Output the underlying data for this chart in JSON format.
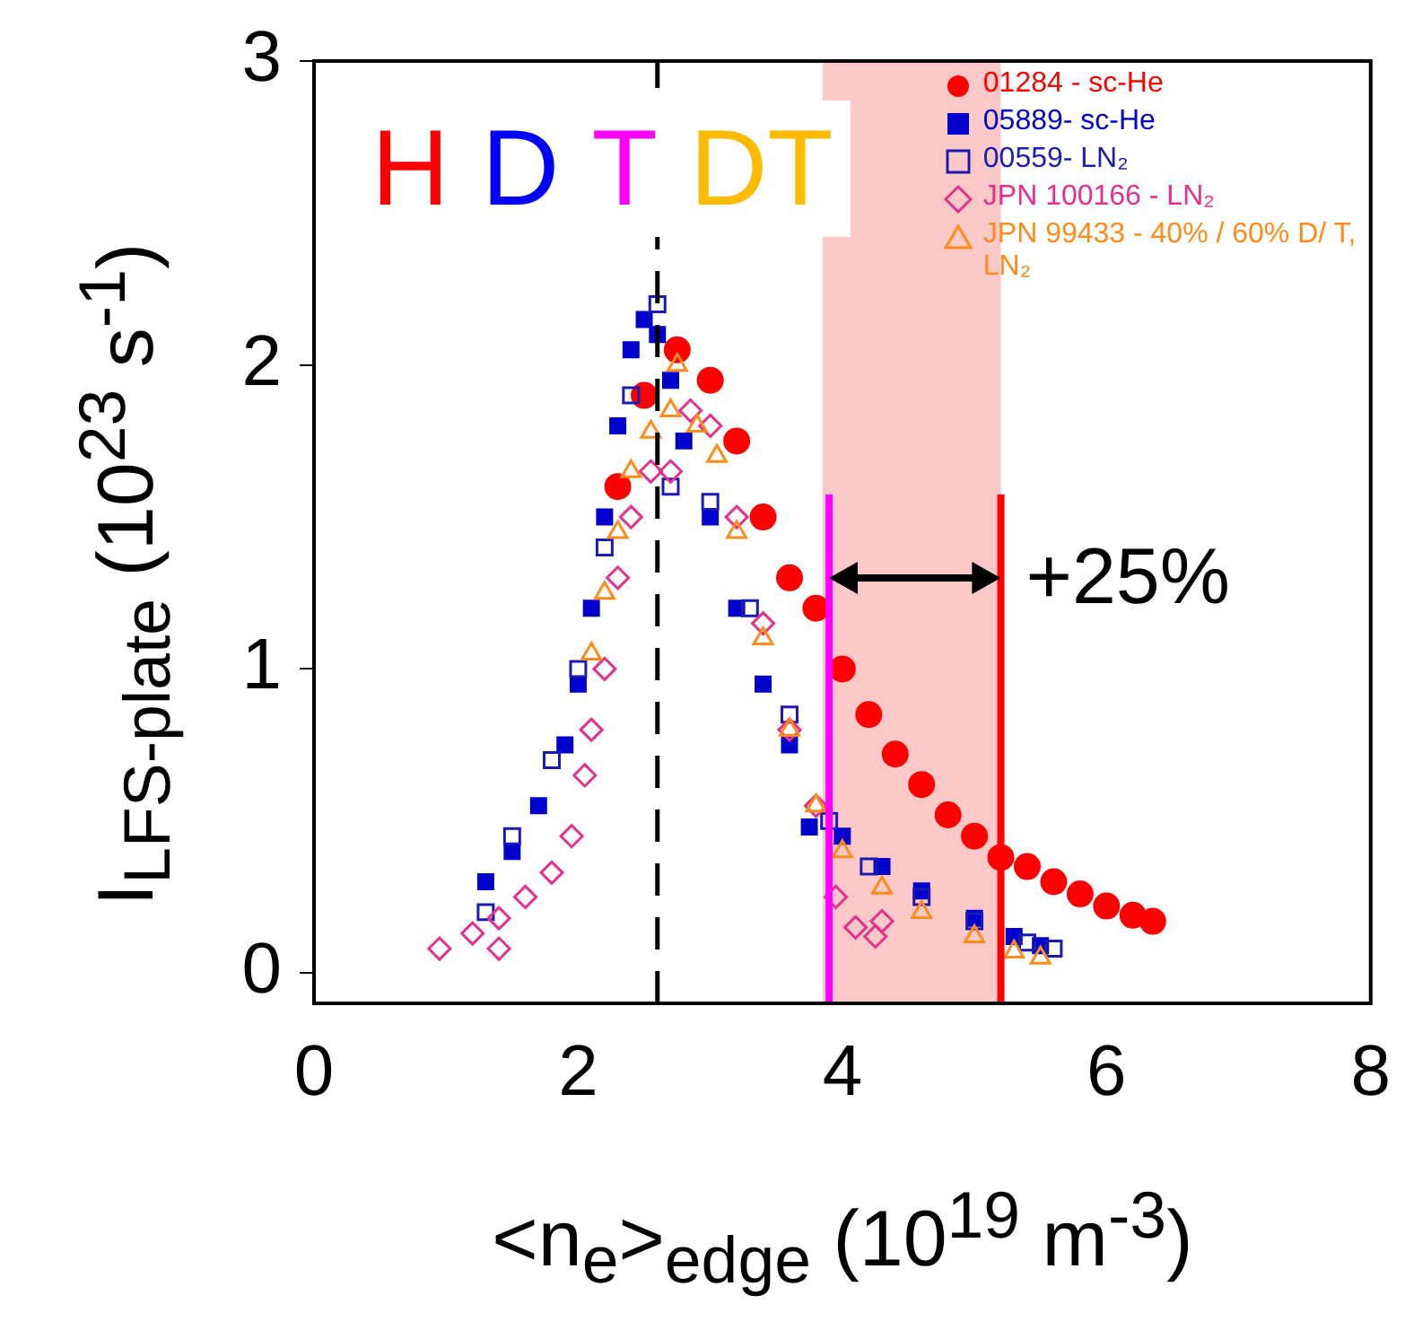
{
  "chart_data": {
    "type": "scatter",
    "xlabel": "<n$_{e}$>$_{edge}$ (10$^{19}$ m$^{-3}$)",
    "ylabel": "I$_{LFS-plate}$ (10$^{23}$ s$^{-1}$)",
    "xlim": [
      0,
      8
    ],
    "ylim": [
      -0.1,
      3
    ],
    "xticks": [
      0,
      2,
      4,
      6,
      8
    ],
    "yticks": [
      0,
      1,
      2,
      3
    ],
    "grid": false,
    "legend": "top right",
    "annotations": [
      "H",
      "D",
      "T",
      "DT",
      "+25%"
    ],
    "bands": [
      {
        "axis": "x",
        "from": 3.85,
        "to": 5.2,
        "color": "#fcc8c8"
      }
    ],
    "ref_lines": [
      {
        "axis": "x",
        "value": 2.6,
        "color": "#000000",
        "line_style": "dashed"
      },
      {
        "axis": "x",
        "value": 3.9,
        "color": "#ff00ff",
        "line_style": "solid"
      },
      {
        "axis": "x",
        "value": 5.2,
        "color": "#ff0000",
        "line_style": "solid"
      }
    ],
    "series": [
      {
        "name": "01284 - sc-He",
        "color": "#ff0000",
        "marker": "circle",
        "x": [
          2.3,
          2.5,
          2.75,
          3.0,
          3.2,
          3.4,
          3.6,
          3.8,
          4.0,
          4.2,
          4.4,
          4.6,
          4.8,
          5.0,
          5.2,
          5.4,
          5.6,
          5.8,
          6.0,
          6.2,
          6.35
        ],
        "values": [
          1.6,
          1.9,
          2.05,
          1.95,
          1.75,
          1.5,
          1.3,
          1.2,
          1.0,
          0.85,
          0.72,
          0.62,
          0.52,
          0.45,
          0.38,
          0.35,
          0.3,
          0.26,
          0.22,
          0.19,
          0.17
        ]
      },
      {
        "name": "05889- sc-He",
        "color": "#0000cc",
        "marker": "square",
        "x": [
          1.3,
          1.5,
          1.7,
          1.9,
          2.0,
          2.1,
          2.2,
          2.3,
          2.4,
          2.5,
          2.6,
          2.7,
          2.8,
          3.0,
          3.2,
          3.4,
          3.6,
          3.75,
          4.0,
          4.3,
          4.6,
          5.0,
          5.3,
          5.5
        ],
        "values": [
          0.3,
          0.4,
          0.55,
          0.75,
          0.95,
          1.2,
          1.5,
          1.8,
          2.05,
          2.15,
          2.1,
          1.95,
          1.75,
          1.5,
          1.2,
          0.95,
          0.75,
          0.48,
          0.45,
          0.35,
          0.27,
          0.18,
          0.12,
          0.09
        ]
      },
      {
        "name": "00559- LN₂",
        "color": "#1a1ab4",
        "marker": "square_open",
        "x": [
          1.3,
          1.5,
          1.8,
          2.0,
          2.2,
          2.4,
          2.6,
          2.7,
          3.0,
          3.3,
          3.6,
          3.9,
          4.2,
          4.6,
          5.0,
          5.4,
          5.6
        ],
        "values": [
          0.2,
          0.45,
          0.7,
          1.0,
          1.4,
          1.9,
          2.2,
          1.6,
          1.55,
          1.2,
          0.85,
          0.5,
          0.35,
          0.25,
          0.17,
          0.1,
          0.08
        ]
      },
      {
        "name": "JPN 100166 - LN₂",
        "color": "#e6308c",
        "marker": "diamond",
        "x": [
          0.95,
          1.2,
          1.4,
          1.4,
          1.6,
          1.8,
          1.95,
          2.05,
          2.1,
          2.2,
          2.3,
          2.4,
          2.55,
          2.7,
          2.85,
          3.0,
          3.2,
          3.4,
          3.6,
          3.8,
          3.95,
          4.1,
          4.25,
          4.3
        ],
        "values": [
          0.08,
          0.13,
          0.18,
          0.08,
          0.25,
          0.33,
          0.45,
          0.65,
          0.8,
          1.0,
          1.3,
          1.5,
          1.65,
          1.65,
          1.85,
          1.8,
          1.5,
          1.15,
          0.8,
          0.55,
          0.25,
          0.15,
          0.12,
          0.17
        ]
      },
      {
        "name": "JPN 99433 - 40% / 60% D/ T, LN₂",
        "color": "#ff8c1a",
        "marker": "triangle",
        "x": [
          2.1,
          2.2,
          2.3,
          2.4,
          2.55,
          2.7,
          2.75,
          2.9,
          3.05,
          3.2,
          3.4,
          3.6,
          3.8,
          4.0,
          4.3,
          4.6,
          5.0,
          5.3,
          5.5
        ],
        "values": [
          1.05,
          1.25,
          1.45,
          1.65,
          1.78,
          1.85,
          2.0,
          1.8,
          1.7,
          1.45,
          1.1,
          0.8,
          0.55,
          0.4,
          0.28,
          0.2,
          0.12,
          0.07,
          0.05
        ]
      }
    ]
  }
}
